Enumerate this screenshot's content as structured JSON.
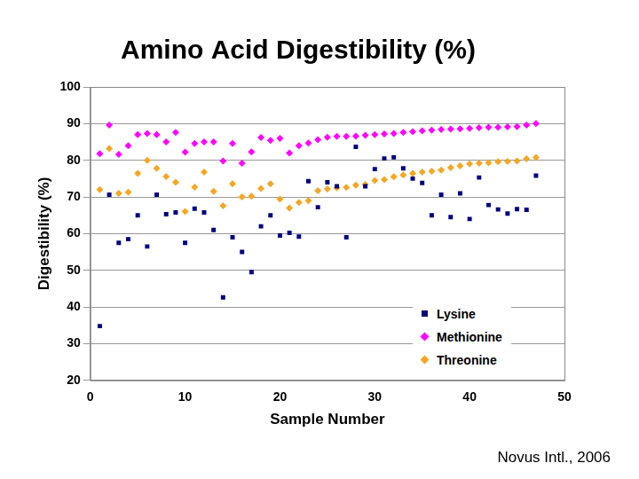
{
  "chart_data": {
    "type": "scatter",
    "title": "Amino Acid Digestibility (%)",
    "x_label": "Sample Number",
    "y_label": "Digestibility (%)",
    "annotation": "Novus Intl., 2006",
    "x": [
      1,
      2,
      3,
      4,
      5,
      6,
      7,
      8,
      9,
      10,
      11,
      12,
      13,
      14,
      15,
      16,
      17,
      18,
      19,
      20,
      21,
      22,
      23,
      24,
      25,
      26,
      27,
      28,
      29,
      30,
      31,
      32,
      33,
      34,
      35,
      36,
      37,
      38,
      39,
      40,
      41,
      42,
      43,
      44,
      45,
      46,
      47
    ],
    "series": [
      {
        "name": "Lysine",
        "color": "#000080",
        "marker": "square",
        "values": [
          34.8,
          70.6,
          57.5,
          58.5,
          65,
          56.5,
          70.6,
          65.3,
          65.8,
          57.5,
          66.8,
          65.8,
          61,
          42.6,
          59,
          55,
          49.5,
          62,
          65,
          59.5,
          60.2,
          59.2,
          74.3,
          67.2,
          74,
          72.9,
          59,
          83.7,
          72.9,
          77.6,
          80.5,
          80.8,
          77.8,
          75,
          73.8,
          65,
          70.6,
          64.5,
          71,
          64,
          75.3,
          67.8,
          66.6,
          65.5,
          66.7,
          66.5,
          75.8
        ]
      },
      {
        "name": "Methionine",
        "color": "#ff00ff",
        "marker": "diamond",
        "values": [
          81.8,
          89.6,
          81.6,
          84,
          87,
          87.3,
          87,
          85,
          87.6,
          82.2,
          84.6,
          85,
          85,
          79.8,
          84.6,
          79.2,
          82.3,
          86.2,
          85.4,
          86,
          82,
          84,
          84.7,
          85.6,
          86.3,
          86.5,
          86.5,
          86.6,
          86.8,
          87,
          87.2,
          87.3,
          87.6,
          87.8,
          88,
          88.2,
          88.4,
          88.5,
          88.6,
          88.7,
          88.9,
          89,
          89,
          89.1,
          89.2,
          89.6,
          90
        ]
      },
      {
        "name": "Threonine",
        "color": "#f5a623",
        "marker": "diamond",
        "values": [
          72,
          83.2,
          71,
          71.3,
          76.4,
          80,
          77.8,
          75.6,
          74,
          66,
          72.7,
          76.8,
          71.5,
          67.6,
          73.6,
          70,
          70.2,
          72.3,
          73.6,
          69.4,
          67,
          68.5,
          69,
          71.7,
          72.2,
          72.5,
          72.6,
          73.2,
          73.4,
          74.5,
          74.7,
          75.5,
          76,
          76.4,
          76.8,
          77,
          77.3,
          78,
          78.5,
          79,
          79.2,
          79.3,
          79.6,
          79.7,
          79.8,
          80.4,
          80.8
        ]
      }
    ],
    "xlim": [
      0,
      50
    ],
    "xticks": [
      0,
      10,
      20,
      30,
      40,
      50
    ],
    "ylim": [
      20,
      100
    ],
    "yticks": [
      20,
      30,
      40,
      50,
      60,
      70,
      80,
      90,
      100
    ],
    "grid": true,
    "legend": "lower right"
  }
}
